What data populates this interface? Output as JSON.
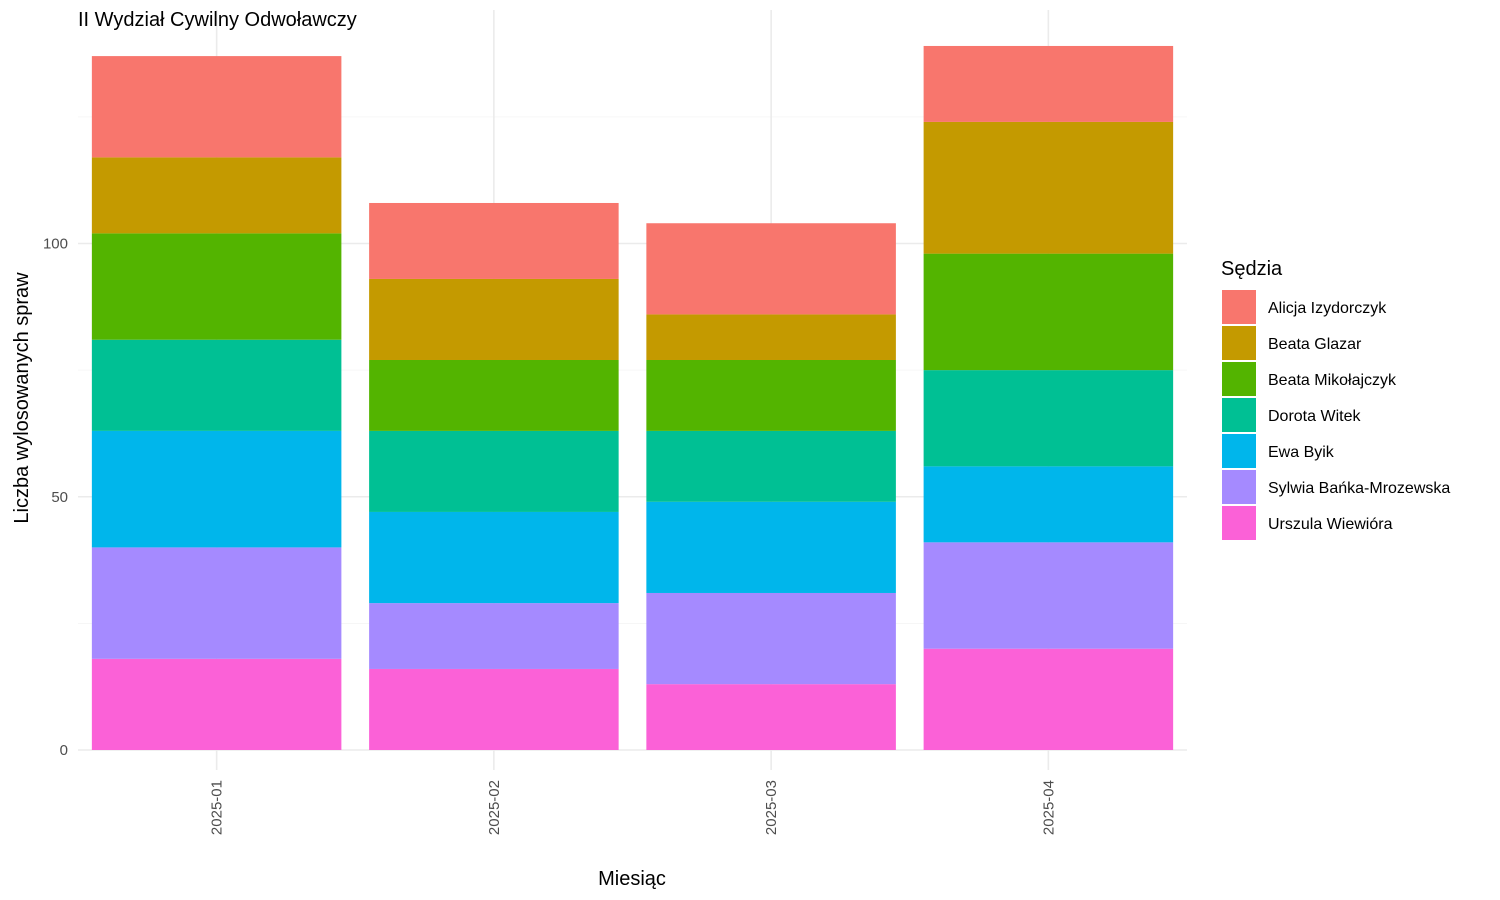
{
  "chart_data": {
    "type": "bar",
    "stacked": true,
    "title": "II Wydział Cywilny Odwoławczy",
    "xlabel": "Miesiąc",
    "ylabel": "Liczba wylosowanych spraw",
    "categories": [
      "2025-01",
      "2025-02",
      "2025-03",
      "2025-04"
    ],
    "ylim": [
      0,
      146
    ],
    "yticks": [
      0,
      50,
      100
    ],
    "grid": true,
    "legend": {
      "title": "Sędzia",
      "position": "right"
    },
    "series": [
      {
        "name": "Alicja Izydorczyk",
        "color": "#F8766D",
        "values": [
          20,
          15,
          18,
          15
        ]
      },
      {
        "name": "Beata Glazar",
        "color": "#C49A00",
        "values": [
          15,
          16,
          9,
          26
        ]
      },
      {
        "name": "Beata Mikołajczyk",
        "color": "#53B400",
        "values": [
          21,
          14,
          14,
          23
        ]
      },
      {
        "name": "Dorota Witek",
        "color": "#00C094",
        "values": [
          18,
          16,
          14,
          19
        ]
      },
      {
        "name": "Ewa Byik",
        "color": "#00B6EB",
        "values": [
          23,
          18,
          18,
          15
        ]
      },
      {
        "name": "Sylwia Bańka-Mrozewska",
        "color": "#A58AFF",
        "values": [
          22,
          13,
          18,
          21
        ]
      },
      {
        "name": "Urszula Wiewióra",
        "color": "#FB61D7",
        "values": [
          18,
          16,
          13,
          20
        ]
      }
    ]
  }
}
